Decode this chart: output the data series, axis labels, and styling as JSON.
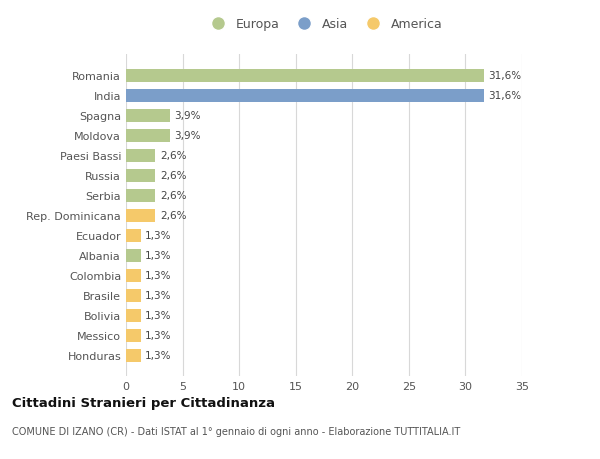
{
  "categories": [
    "Honduras",
    "Messico",
    "Bolivia",
    "Brasile",
    "Colombia",
    "Albania",
    "Ecuador",
    "Rep. Dominicana",
    "Serbia",
    "Russia",
    "Paesi Bassi",
    "Moldova",
    "Spagna",
    "India",
    "Romania"
  ],
  "values": [
    1.3,
    1.3,
    1.3,
    1.3,
    1.3,
    1.3,
    1.3,
    2.6,
    2.6,
    2.6,
    2.6,
    3.9,
    3.9,
    31.6,
    31.6
  ],
  "labels": [
    "1,3%",
    "1,3%",
    "1,3%",
    "1,3%",
    "1,3%",
    "1,3%",
    "1,3%",
    "2,6%",
    "2,6%",
    "2,6%",
    "2,6%",
    "3,9%",
    "3,9%",
    "31,6%",
    "31,6%"
  ],
  "colors": [
    "#f5c96a",
    "#f5c96a",
    "#f5c96a",
    "#f5c96a",
    "#f5c96a",
    "#b5c98e",
    "#f5c96a",
    "#f5c96a",
    "#b5c98e",
    "#b5c98e",
    "#b5c98e",
    "#b5c98e",
    "#b5c98e",
    "#7b9ec9",
    "#b5c98e"
  ],
  "legend_labels": [
    "Europa",
    "Asia",
    "America"
  ],
  "legend_colors": [
    "#b5c98e",
    "#7b9ec9",
    "#f5c96a"
  ],
  "title": "Cittadini Stranieri per Cittadinanza",
  "subtitle": "COMUNE DI IZANO (CR) - Dati ISTAT al 1° gennaio di ogni anno - Elaborazione TUTTITALIA.IT",
  "xlim": [
    0,
    35
  ],
  "xticks": [
    0,
    5,
    10,
    15,
    20,
    25,
    30,
    35
  ],
  "bg_color": "#ffffff",
  "grid_color": "#d8d8d8",
  "bar_height": 0.65
}
